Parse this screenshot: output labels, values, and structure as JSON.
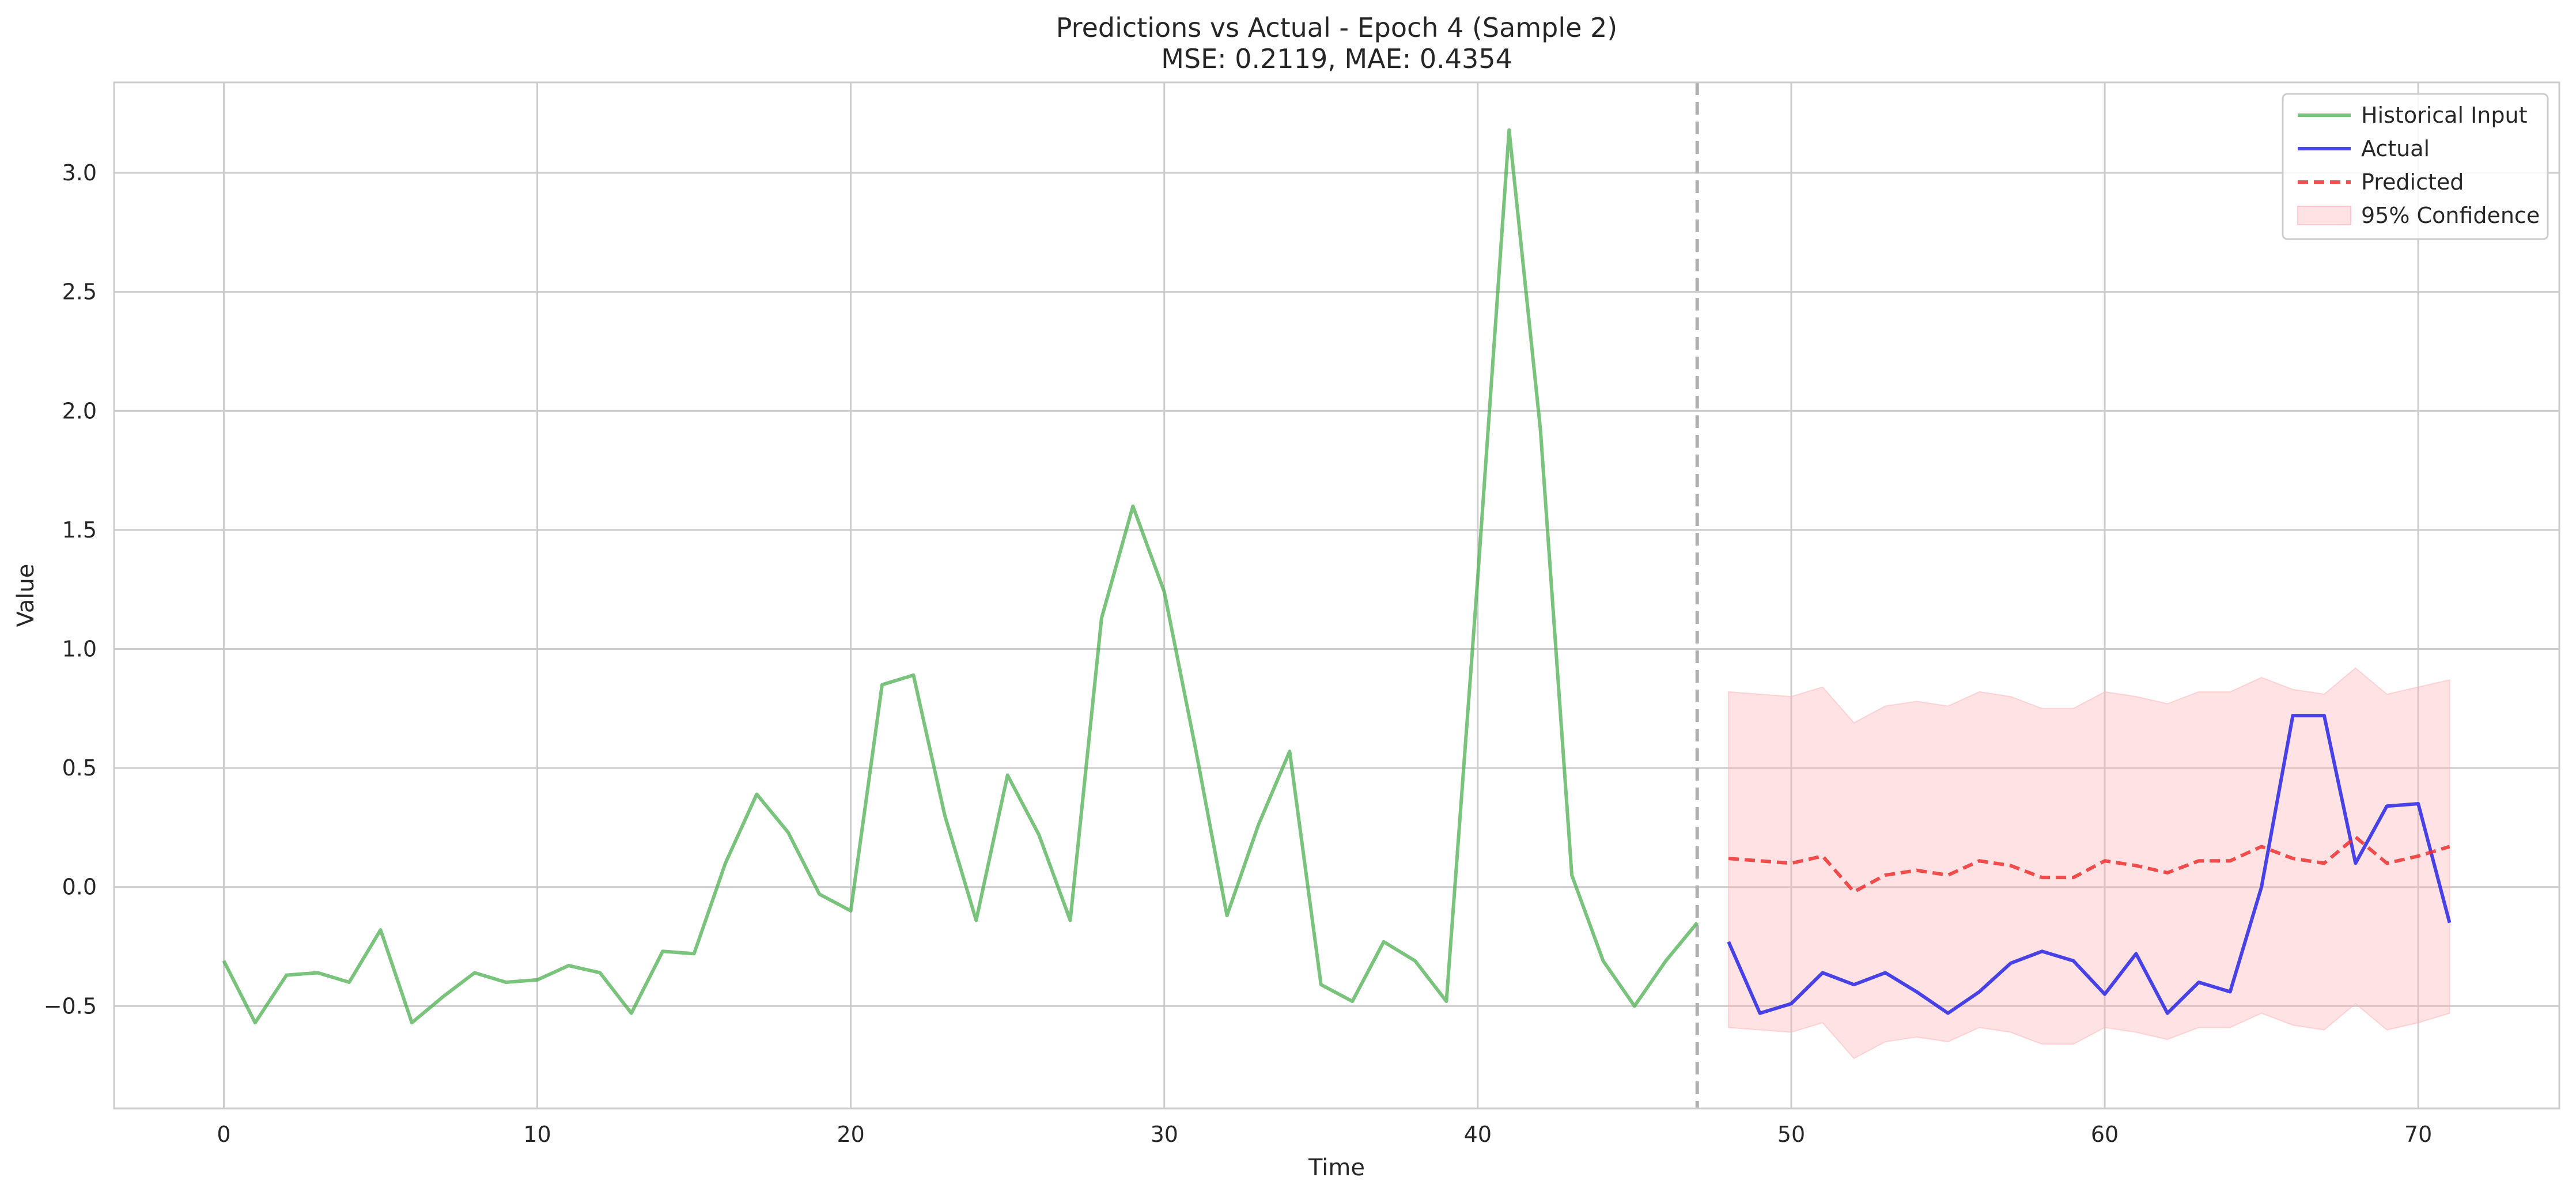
{
  "chart_data": {
    "type": "line",
    "title": "Predictions vs Actual - Epoch 4 (Sample 2)",
    "subtitle": "MSE: 0.2119, MAE: 0.4354",
    "xlabel": "Time",
    "ylabel": "Value",
    "xlim": [
      -3.5,
      74.5
    ],
    "ylim": [
      -0.93,
      3.38
    ],
    "xticks": [
      0,
      10,
      20,
      30,
      40,
      50,
      60,
      70
    ],
    "yticks": [
      -0.5,
      0.0,
      0.5,
      1.0,
      1.5,
      2.0,
      2.5,
      3.0
    ],
    "xtick_labels": [
      "0",
      "10",
      "20",
      "30",
      "40",
      "50",
      "60",
      "70"
    ],
    "ytick_labels": [
      "−0.5",
      "0.0",
      "0.5",
      "1.0",
      "1.5",
      "2.0",
      "2.5",
      "3.0"
    ],
    "grid": true,
    "legend_position": "top-right",
    "split_line_x": 47,
    "colors": {
      "historical": "#4caf50",
      "actual": "#1a1ae6",
      "predicted": "#f03030",
      "confidence": "#ffb3b8",
      "split": "#b0b0b0",
      "grid": "#cccccc",
      "spine": "#cccccc"
    },
    "series": [
      {
        "name": "Historical Input",
        "style": "solid",
        "x": [
          0,
          1,
          2,
          3,
          4,
          5,
          6,
          7,
          8,
          9,
          10,
          11,
          12,
          13,
          14,
          15,
          16,
          17,
          18,
          19,
          20,
          21,
          22,
          23,
          24,
          25,
          26,
          27,
          28,
          29,
          30,
          31,
          32,
          33,
          34,
          35,
          36,
          37,
          38,
          39,
          40,
          41,
          42,
          43,
          44,
          45,
          46,
          47
        ],
        "y": [
          -0.31,
          -0.57,
          -0.37,
          -0.36,
          -0.4,
          -0.18,
          -0.57,
          -0.46,
          -0.36,
          -0.4,
          -0.39,
          -0.33,
          -0.36,
          -0.53,
          -0.27,
          -0.28,
          0.1,
          0.39,
          0.23,
          -0.03,
          -0.1,
          0.85,
          0.89,
          0.3,
          -0.14,
          0.47,
          0.22,
          -0.14,
          1.13,
          1.6,
          1.24,
          0.58,
          -0.12,
          0.26,
          0.57,
          -0.41,
          -0.48,
          -0.23,
          -0.31,
          -0.48,
          1.3,
          3.18,
          1.92,
          0.05,
          -0.31,
          -0.5,
          -0.31,
          -0.15
        ]
      },
      {
        "name": "Actual",
        "style": "solid",
        "x": [
          48,
          49,
          50,
          51,
          52,
          53,
          54,
          55,
          56,
          57,
          58,
          59,
          60,
          61,
          62,
          63,
          64,
          65,
          66,
          67,
          68,
          69,
          70,
          71
        ],
        "y": [
          -0.23,
          -0.53,
          -0.49,
          -0.36,
          -0.41,
          -0.36,
          -0.44,
          -0.53,
          -0.44,
          -0.32,
          -0.27,
          -0.31,
          -0.45,
          -0.28,
          -0.53,
          -0.4,
          -0.44,
          0.0,
          0.72,
          0.72,
          0.1,
          0.34,
          0.35,
          -0.15
        ]
      },
      {
        "name": "Predicted",
        "style": "dashed",
        "x": [
          48,
          49,
          50,
          51,
          52,
          53,
          54,
          55,
          56,
          57,
          58,
          59,
          60,
          61,
          62,
          63,
          64,
          65,
          66,
          67,
          68,
          69,
          70,
          71
        ],
        "y": [
          0.12,
          0.11,
          0.1,
          0.13,
          -0.02,
          0.05,
          0.07,
          0.05,
          0.11,
          0.09,
          0.04,
          0.04,
          0.11,
          0.09,
          0.06,
          0.11,
          0.11,
          0.17,
          0.12,
          0.1,
          0.21,
          0.1,
          0.13,
          0.17
        ]
      },
      {
        "name": "95% Confidence",
        "style": "band",
        "x": [
          48,
          49,
          50,
          51,
          52,
          53,
          54,
          55,
          56,
          57,
          58,
          59,
          60,
          61,
          62,
          63,
          64,
          65,
          66,
          67,
          68,
          69,
          70,
          71
        ],
        "upper": [
          0.82,
          0.81,
          0.8,
          0.84,
          0.69,
          0.76,
          0.78,
          0.76,
          0.82,
          0.8,
          0.75,
          0.75,
          0.82,
          0.8,
          0.77,
          0.82,
          0.82,
          0.88,
          0.83,
          0.81,
          0.92,
          0.81,
          0.84,
          0.87
        ],
        "lower": [
          -0.59,
          -0.6,
          -0.61,
          -0.57,
          -0.72,
          -0.65,
          -0.63,
          -0.65,
          -0.59,
          -0.61,
          -0.66,
          -0.66,
          -0.59,
          -0.61,
          -0.64,
          -0.59,
          -0.59,
          -0.53,
          -0.58,
          -0.6,
          -0.49,
          -0.6,
          -0.57,
          -0.53
        ]
      }
    ]
  }
}
